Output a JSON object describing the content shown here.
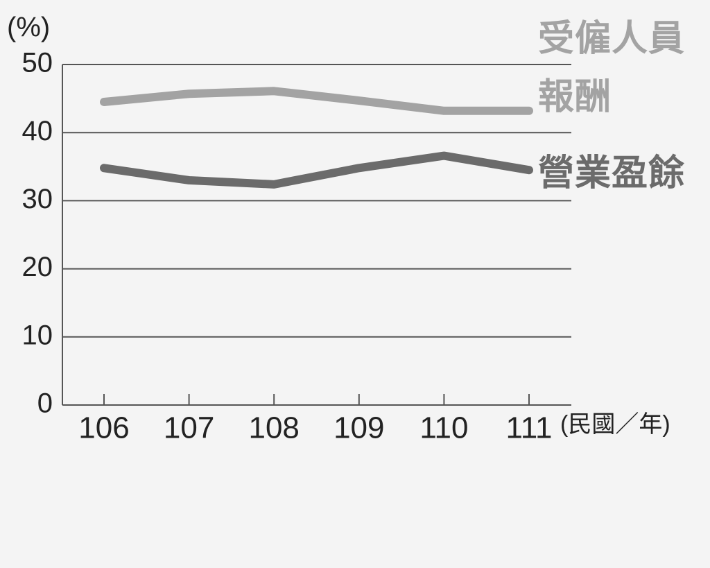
{
  "chart_data": {
    "type": "line",
    "y_label": "(%)",
    "x_label": "(民國／年)",
    "categories": [
      "106",
      "107",
      "108",
      "109",
      "110",
      "111"
    ],
    "series": [
      {
        "name": "受僱人員報酬",
        "color": "#a3a3a3",
        "values": [
          44.5,
          45.7,
          46.1,
          44.7,
          43.2,
          43.2
        ]
      },
      {
        "name": "營業盈餘",
        "color": "#6b6b6b",
        "values": [
          34.8,
          33.0,
          32.4,
          34.8,
          36.6,
          34.5
        ]
      }
    ],
    "ylim": [
      0,
      50
    ],
    "yticks": [
      0,
      10,
      20,
      30,
      40,
      50
    ],
    "grid": true
  }
}
